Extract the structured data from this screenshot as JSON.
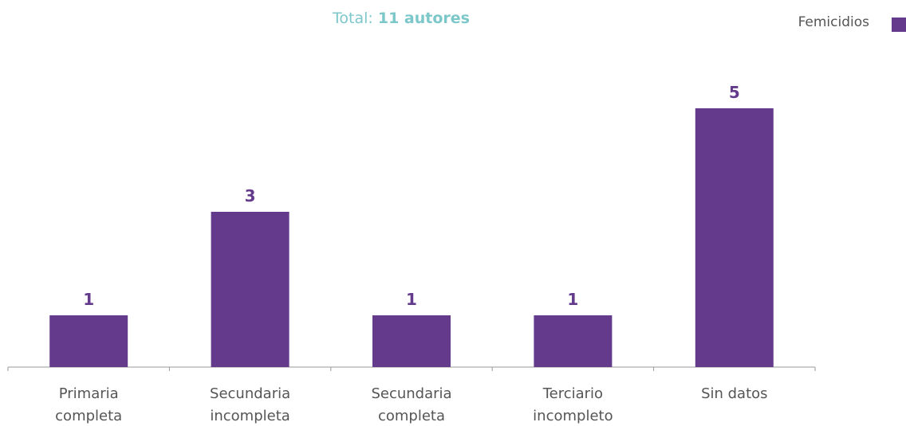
{
  "chart_data": {
    "type": "bar",
    "title": "Total:",
    "title_emphasis": "11 autores",
    "categories": [
      "Primaria completa",
      "Secundaria incompleta",
      "Secundaria completa",
      "Terciario incompleto",
      "Sin datos"
    ],
    "series": [
      {
        "name": "Femicidios",
        "color": "#633a8c",
        "values": [
          1,
          3,
          1,
          1,
          5
        ]
      }
    ],
    "ylim": [
      0,
      5
    ],
    "legend": "top-right"
  }
}
